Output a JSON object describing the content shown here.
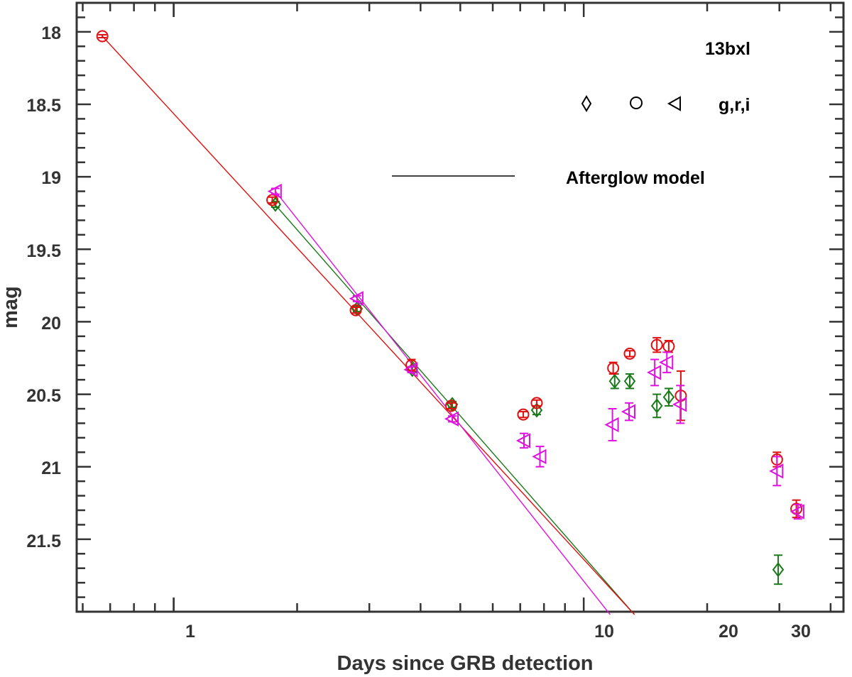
{
  "chart_data": {
    "type": "scatter",
    "xscale": "log",
    "xlabel": "Days since GRB detection",
    "ylabel": "mag",
    "xlim": [
      0.58,
      43
    ],
    "ylim": [
      17.8,
      22.0
    ],
    "y_reversed": true,
    "xticks": [
      1,
      10,
      20,
      30
    ],
    "xtick_labels": [
      "1",
      "10",
      "20",
      "30"
    ],
    "yticks": [
      18,
      18.5,
      19,
      19.5,
      20,
      20.5,
      21,
      21.5
    ],
    "ytick_labels": [
      "18",
      "18.5",
      "19",
      "19.5",
      "20",
      "20.5",
      "21",
      "21.5"
    ],
    "annotation": "13bxl",
    "legend": {
      "symbols_label": "g,r,i",
      "model_label": "Afterglow model",
      "placement": "top-right"
    },
    "series": [
      {
        "name": "g",
        "marker": "diamond",
        "color": "#1a7a1a",
        "x": [
          1.77,
          2.8,
          3.82,
          4.78,
          7.68,
          11.9,
          12.95,
          15.08,
          16.12,
          29.8
        ],
        "y": [
          19.19,
          19.91,
          20.33,
          20.57,
          20.61,
          20.41,
          20.41,
          20.58,
          20.52,
          21.71
        ],
        "err": [
          0.02,
          0.02,
          0.02,
          0.02,
          0.03,
          0.05,
          0.05,
          0.08,
          0.06,
          0.1
        ]
      },
      {
        "name": "r",
        "marker": "circle",
        "color": "#e01010",
        "x": [
          0.67,
          1.74,
          2.78,
          3.8,
          4.75,
          7.12,
          7.68,
          11.8,
          12.95,
          15.08,
          16.12,
          17.25,
          29.6,
          33.0
        ],
        "y": [
          18.03,
          19.16,
          19.92,
          20.3,
          20.58,
          20.64,
          20.56,
          20.32,
          20.22,
          20.16,
          20.17,
          20.51,
          20.95,
          21.29
        ],
        "err": [
          0.01,
          0.02,
          0.02,
          0.04,
          0.02,
          0.02,
          0.02,
          0.04,
          0.02,
          0.05,
          0.04,
          0.17,
          0.05,
          0.06
        ]
      },
      {
        "name": "i",
        "marker": "triangle-left",
        "color": "#e010e0",
        "x": [
          1.77,
          2.8,
          3.8,
          4.78,
          7.15,
          7.82,
          11.75,
          12.9,
          14.9,
          15.95,
          17.2,
          29.6,
          33.3
        ],
        "y": [
          19.1,
          19.84,
          20.33,
          20.67,
          20.82,
          20.93,
          20.71,
          20.62,
          20.35,
          20.28,
          20.57,
          21.03,
          21.31
        ],
        "err": [
          0.02,
          0.02,
          0.02,
          0.02,
          0.05,
          0.07,
          0.11,
          0.06,
          0.09,
          0.07,
          0.13,
          0.1,
          0.05
        ]
      }
    ],
    "models": [
      {
        "name": "g afterglow model",
        "color": "#1a7a1a",
        "x": [
          1.74,
          13.3
        ],
        "y": [
          19.17,
          22.02
        ]
      },
      {
        "name": "r afterglow model",
        "color": "#e01010",
        "x": [
          0.67,
          13.3
        ],
        "y": [
          18.03,
          22.02
        ]
      },
      {
        "name": "i afterglow model",
        "color": "#e010e0",
        "x": [
          1.77,
          11.6
        ],
        "y": [
          19.1,
          22.02
        ]
      }
    ]
  }
}
